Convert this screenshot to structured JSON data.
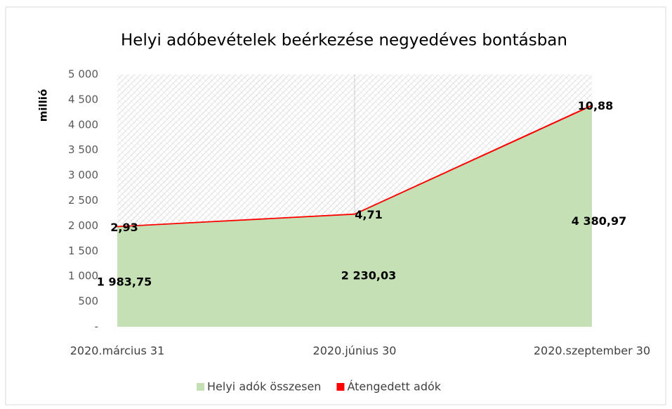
{
  "chart_data": {
    "type": "area",
    "stacked": true,
    "title": "Helyi adóbevételek beérkezése negyedéves bontásban",
    "y_label": "millió",
    "categories": [
      "2020.március 31",
      "2020.június 30",
      "2020.szeptember 30"
    ],
    "series": [
      {
        "name": "Helyi adók összesen",
        "color": "#c5e0b4",
        "values": [
          1983.75,
          2230.03,
          4380.97
        ],
        "value_labels": [
          "1 983,75",
          "2 230,03",
          "4 380,97"
        ]
      },
      {
        "name": "Átengedett adók",
        "color": "#ff0000",
        "values": [
          2.93,
          4.71,
          10.88
        ],
        "value_labels": [
          "2,93",
          "4,71",
          "10,88"
        ]
      }
    ],
    "ylim": [
      0,
      5000
    ],
    "yticks": [
      {
        "value": 0,
        "label": "-"
      },
      500,
      {
        "value": 1000,
        "label": "1 000"
      },
      {
        "value": 1500,
        "label": "1 500"
      },
      {
        "value": 2000,
        "label": "2 000"
      },
      {
        "value": 2500,
        "label": "2 500"
      },
      {
        "value": 3000,
        "label": "3 000"
      },
      {
        "value": 3500,
        "label": "3 500"
      },
      {
        "value": 4000,
        "label": "4 000"
      },
      {
        "value": 4500,
        "label": "4 500"
      },
      {
        "value": 5000,
        "label": "5 000"
      }
    ],
    "legend": "bottom"
  }
}
